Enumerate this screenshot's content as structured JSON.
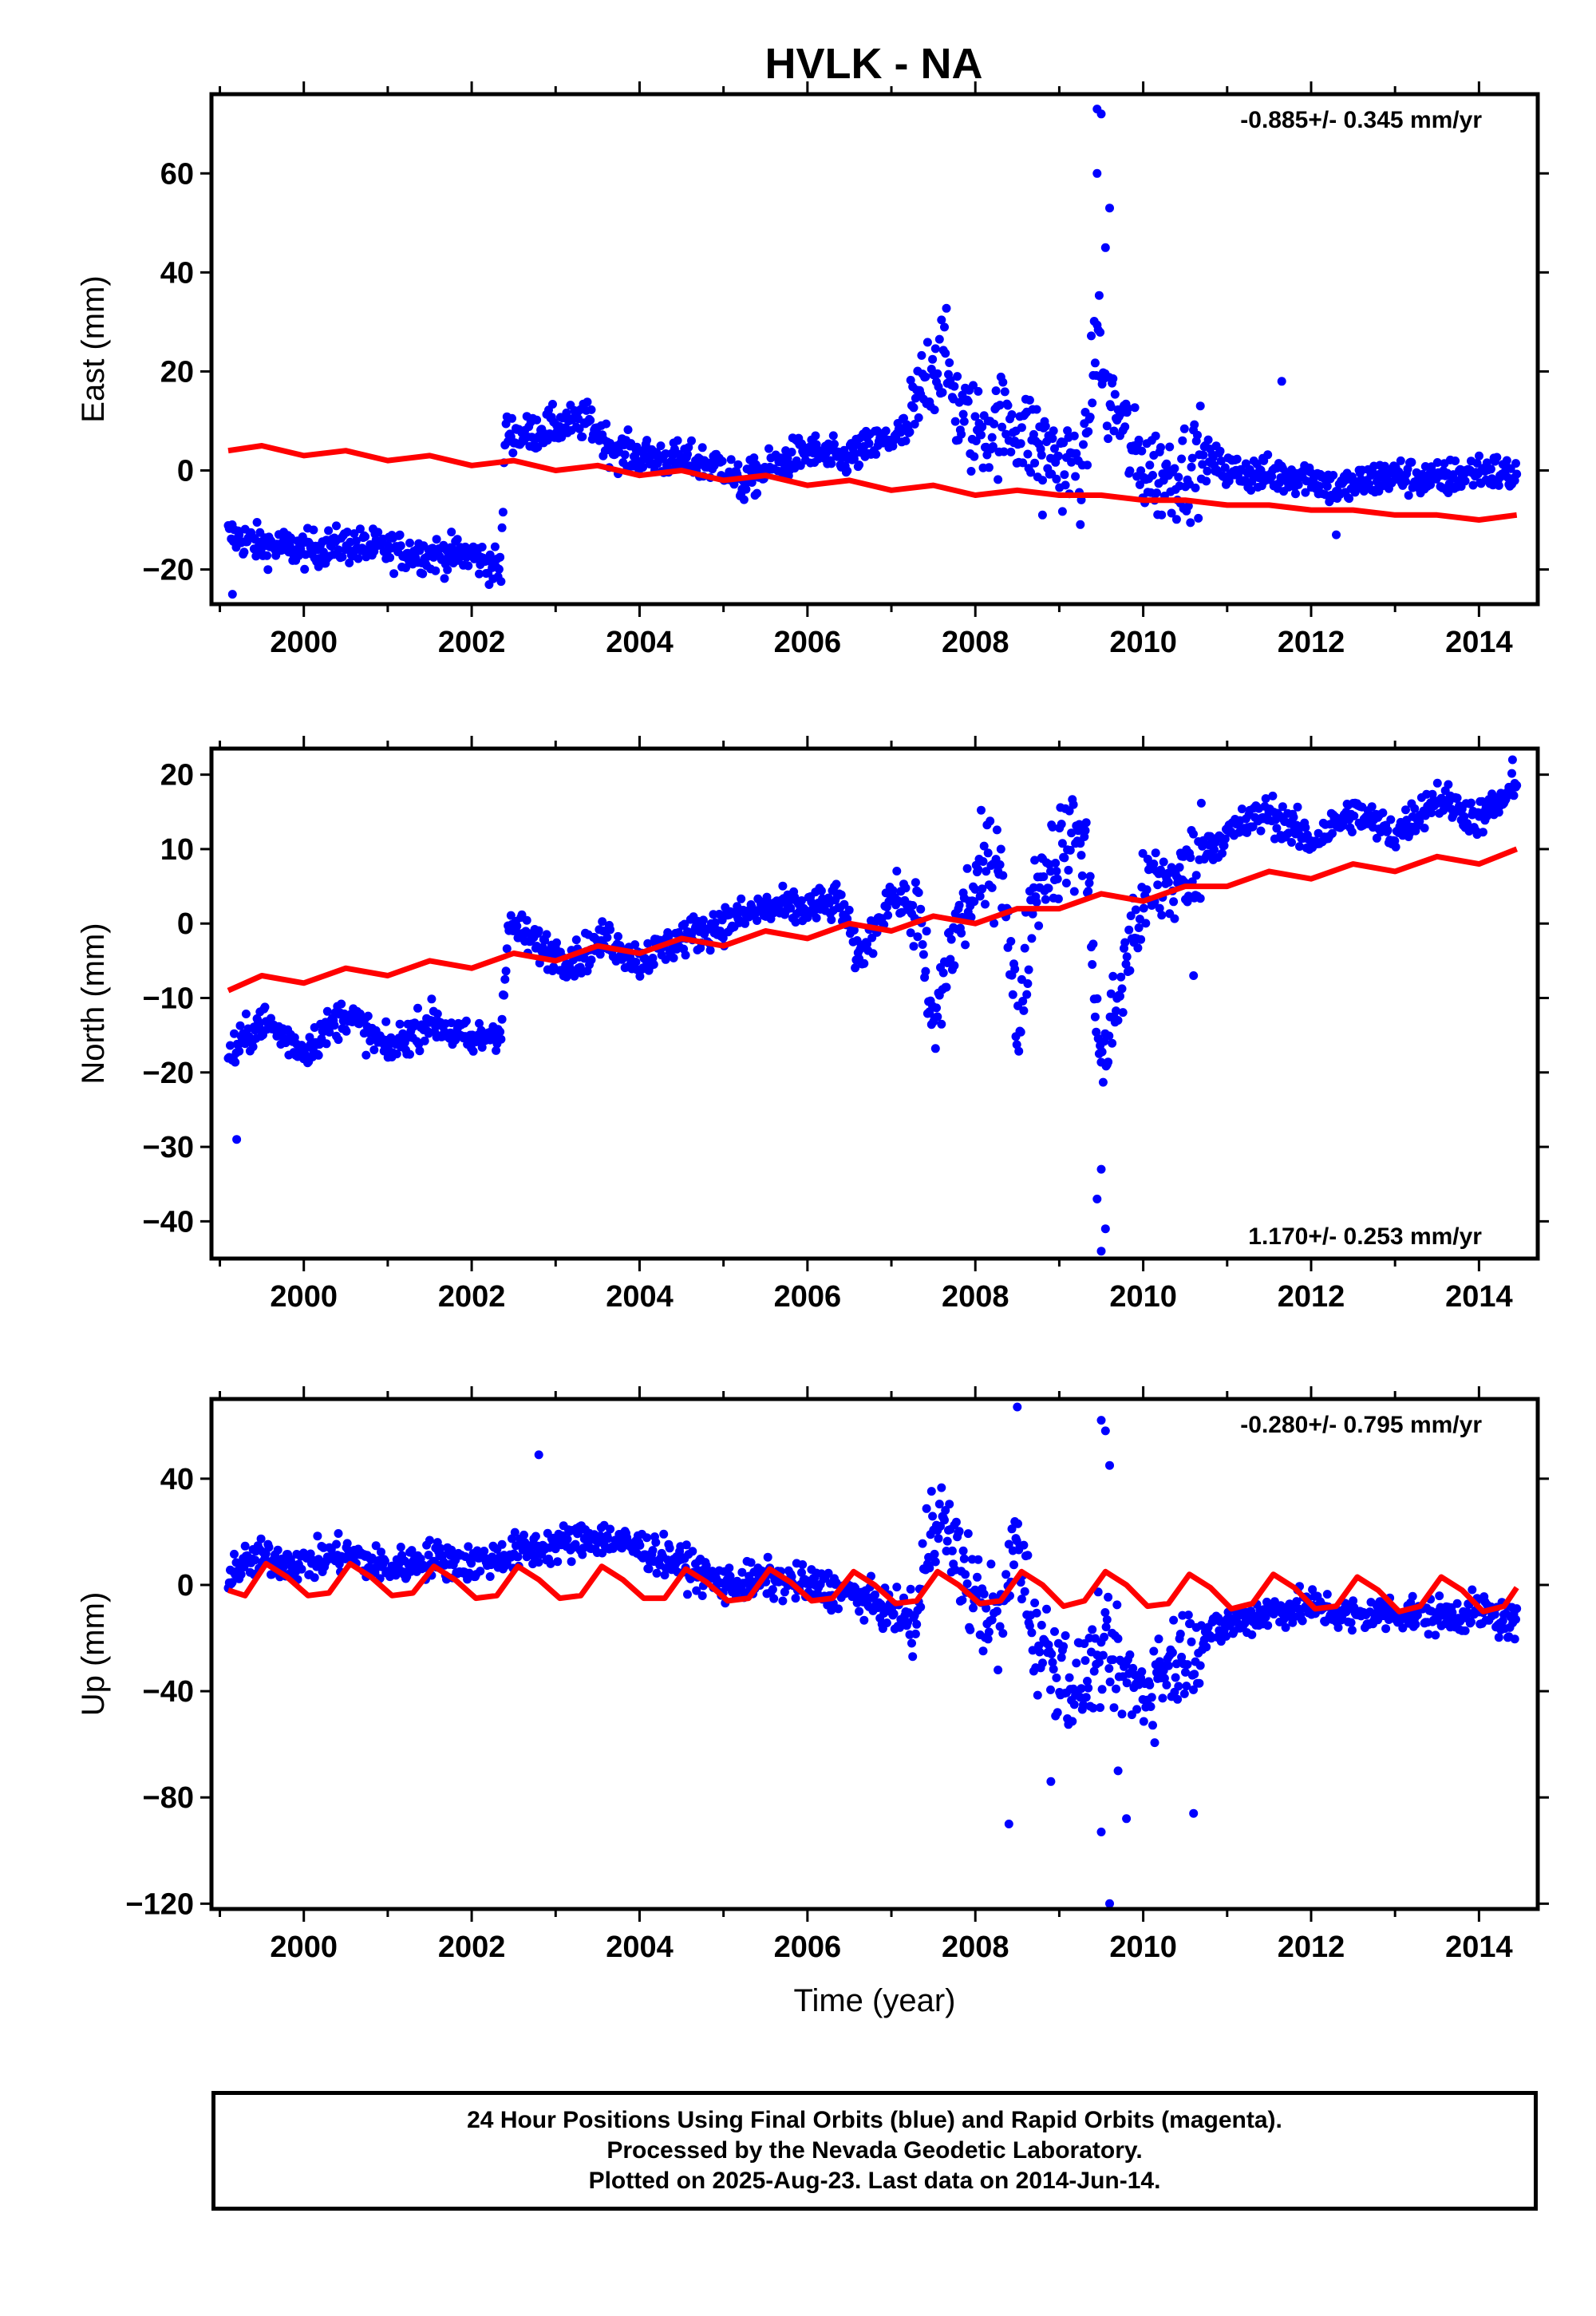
{
  "title": "HVLK - NA",
  "footer": {
    "line1": "24 Hour Positions Using Final Orbits (blue) and Rapid Orbits (magenta).",
    "line2": "Processed by the Nevada Geodetic Laboratory.",
    "line3": "Plotted on 2025-Aug-23. Last data on 2014-Jun-14."
  },
  "colors": {
    "data": "#0000ff",
    "model": "#ff0000",
    "axis": "#000000"
  },
  "chart_data": [
    {
      "type": "scatter",
      "ylabel": "East (mm)",
      "xlabel": "",
      "xlim": [
        1998.9,
        2014.7
      ],
      "ylim": [
        -27,
        76
      ],
      "yticks": [
        -20,
        0,
        20,
        40,
        60
      ],
      "xticks": [
        2000,
        2002,
        2004,
        2006,
        2008,
        2010,
        2012,
        2014
      ],
      "rate": "-0.885+/- 0.345 mm/yr",
      "rate_position": "top-right",
      "series": [
        {
          "role": "observed",
          "x": [
            1999.1,
            1999.5,
            2000.0,
            2000.5,
            2001.0,
            2001.5,
            2002.0,
            2002.35,
            2002.4,
            2002.6,
            2003.0,
            2003.4,
            2003.7,
            2004.0,
            2004.5,
            2005.0,
            2005.2,
            2005.6,
            2006.0,
            2006.4,
            2006.8,
            2007.2,
            2007.45,
            2007.6,
            2007.8,
            2008.0,
            2008.4,
            2008.7,
            2009.0,
            2009.3,
            2009.45,
            2009.55,
            2009.75,
            2009.9,
            2010.2,
            2010.5,
            2010.7,
            2011.0,
            2011.5,
            2012.0,
            2012.3,
            2012.7,
            2013.0,
            2013.5,
            2014.0,
            2014.45
          ],
          "y": [
            -13,
            -15,
            -16,
            -15,
            -16,
            -17,
            -17,
            -20,
            8,
            7,
            9,
            10,
            4,
            3,
            2,
            1,
            -3,
            1,
            4,
            2,
            5,
            8,
            20,
            24,
            12,
            8,
            10,
            6,
            2,
            0,
            30,
            15,
            10,
            2,
            -1,
            0,
            3,
            0,
            -1,
            -1,
            -4,
            -2,
            -1,
            -2,
            0,
            -1
          ]
        },
        {
          "role": "model",
          "x": [
            1999.1,
            1999.5,
            2000.0,
            2000.5,
            2001.0,
            2001.5,
            2002.0,
            2002.5,
            2003.0,
            2003.5,
            2004.0,
            2004.5,
            2005.0,
            2005.5,
            2006.0,
            2006.5,
            2007.0,
            2007.5,
            2008.0,
            2008.5,
            2009.0,
            2009.5,
            2010.0,
            2010.5,
            2011.0,
            2011.5,
            2012.0,
            2012.5,
            2013.0,
            2013.5,
            2014.0,
            2014.45
          ],
          "y": [
            4,
            5,
            3,
            4,
            2,
            3,
            1,
            2,
            0,
            1,
            -1,
            0,
            -2,
            -1,
            -3,
            -2,
            -4,
            -3,
            -5,
            -4,
            -5,
            -5,
            -6,
            -6,
            -7,
            -7,
            -8,
            -8,
            -9,
            -9,
            -10,
            -9
          ]
        }
      ],
      "outliers": [
        [
          2009.45,
          73
        ],
        [
          2009.5,
          72
        ],
        [
          2009.45,
          60
        ],
        [
          2009.6,
          53
        ],
        [
          2009.55,
          45
        ],
        [
          1999.15,
          -25
        ],
        [
          2008.8,
          -9
        ],
        [
          2011.65,
          18
        ],
        [
          2012.3,
          -13
        ]
      ]
    },
    {
      "type": "scatter",
      "ylabel": "North (mm)",
      "xlabel": "",
      "xlim": [
        1998.9,
        2014.7
      ],
      "ylim": [
        -45,
        23.5
      ],
      "yticks": [
        -40,
        -30,
        -20,
        -10,
        0,
        10,
        20
      ],
      "xticks": [
        2000,
        2002,
        2004,
        2006,
        2008,
        2010,
        2012,
        2014
      ],
      "rate": "1.170+/- 0.253 mm/yr",
      "rate_position": "bottom-right",
      "series": [
        {
          "role": "observed",
          "x": [
            1999.1,
            1999.5,
            2000.0,
            2000.5,
            2001.0,
            2001.5,
            2002.0,
            2002.35,
            2002.45,
            2002.8,
            2003.2,
            2003.6,
            2004.0,
            2004.5,
            2005.0,
            2005.5,
            2006.0,
            2006.4,
            2006.6,
            2007.0,
            2007.3,
            2007.5,
            2007.7,
            2008.0,
            2008.3,
            2008.5,
            2008.7,
            2009.0,
            2009.3,
            2009.5,
            2009.7,
            2009.9,
            2010.1,
            2010.5,
            2010.7,
            2011.0,
            2011.5,
            2012.0,
            2012.5,
            2013.0,
            2013.5,
            2014.0,
            2014.45
          ],
          "y": [
            -18,
            -13,
            -17,
            -12,
            -17,
            -13,
            -16,
            -14,
            0,
            -3,
            -5,
            -2,
            -5,
            -2,
            0,
            2,
            2,
            3,
            -5,
            4,
            2,
            -15,
            -3,
            5,
            10,
            -15,
            5,
            10,
            12,
            -20,
            -10,
            0,
            5,
            6,
            10,
            12,
            15,
            11,
            15,
            12,
            17,
            14,
            18
          ]
        },
        {
          "role": "model",
          "x": [
            1999.1,
            1999.5,
            2000.0,
            2000.5,
            2001.0,
            2001.5,
            2002.0,
            2002.5,
            2003.0,
            2003.5,
            2004.0,
            2004.5,
            2005.0,
            2005.5,
            2006.0,
            2006.5,
            2007.0,
            2007.5,
            2008.0,
            2008.5,
            2009.0,
            2009.5,
            2010.0,
            2010.5,
            2011.0,
            2011.5,
            2012.0,
            2012.5,
            2013.0,
            2013.5,
            2014.0,
            2014.45
          ],
          "y": [
            -9,
            -7,
            -8,
            -6,
            -7,
            -5,
            -6,
            -4,
            -5,
            -3,
            -4,
            -2,
            -3,
            -1,
            -2,
            0,
            -1,
            1,
            0,
            2,
            2,
            4,
            3,
            5,
            5,
            7,
            6,
            8,
            7,
            9,
            8,
            10
          ]
        }
      ],
      "outliers": [
        [
          1999.2,
          -29
        ],
        [
          2009.5,
          -44
        ],
        [
          2009.55,
          -41
        ],
        [
          2009.45,
          -37
        ],
        [
          2009.5,
          -33
        ],
        [
          2010.6,
          -7
        ],
        [
          2014.4,
          22
        ]
      ]
    },
    {
      "type": "scatter",
      "ylabel": "Up (mm)",
      "xlabel": "Time (year)",
      "xlim": [
        1998.9,
        2014.7
      ],
      "ylim": [
        -122,
        70
      ],
      "yticks": [
        -120,
        -80,
        -40,
        0,
        40
      ],
      "xticks": [
        2000,
        2002,
        2004,
        2006,
        2008,
        2010,
        2012,
        2014
      ],
      "rate": "-0.280+/- 0.795 mm/yr",
      "rate_position": "top-right",
      "series": [
        {
          "role": "observed",
          "x": [
            1999.1,
            1999.5,
            2000.0,
            2000.5,
            2001.0,
            2001.5,
            2002.0,
            2002.5,
            2003.0,
            2003.5,
            2004.0,
            2004.5,
            2005.0,
            2005.5,
            2006.0,
            2006.5,
            2007.0,
            2007.3,
            2007.5,
            2007.8,
            2008.0,
            2008.3,
            2008.5,
            2008.7,
            2009.0,
            2009.2,
            2009.5,
            2009.8,
            2010.0,
            2010.3,
            2010.7,
            2011.0,
            2011.5,
            2012.0,
            2012.5,
            2013.0,
            2013.5,
            2014.0,
            2014.45
          ],
          "y": [
            5,
            10,
            8,
            12,
            6,
            10,
            8,
            12,
            15,
            18,
            14,
            8,
            0,
            2,
            0,
            -3,
            -10,
            -15,
            30,
            10,
            -5,
            -15,
            20,
            -20,
            -30,
            -40,
            -25,
            -35,
            -40,
            -30,
            -20,
            -15,
            -10,
            -8,
            -12,
            -10,
            -12,
            -10,
            -15
          ]
        },
        {
          "role": "model",
          "x": [
            1999.1,
            1999.3,
            1999.55,
            1999.8,
            2000.05,
            2000.3,
            2000.55,
            2000.8,
            2001.05,
            2001.3,
            2001.55,
            2001.8,
            2002.05,
            2002.3,
            2002.55,
            2002.8,
            2003.05,
            2003.3,
            2003.55,
            2003.8,
            2004.05,
            2004.3,
            2004.55,
            2004.8,
            2005.05,
            2005.3,
            2005.55,
            2005.8,
            2006.05,
            2006.3,
            2006.55,
            2006.8,
            2007.05,
            2007.3,
            2007.55,
            2007.8,
            2008.05,
            2008.3,
            2008.55,
            2008.8,
            2009.05,
            2009.3,
            2009.55,
            2009.8,
            2010.05,
            2010.3,
            2010.55,
            2010.8,
            2011.05,
            2011.3,
            2011.55,
            2011.8,
            2012.05,
            2012.3,
            2012.55,
            2012.8,
            2013.05,
            2013.3,
            2013.55,
            2013.8,
            2014.05,
            2014.3,
            2014.45
          ],
          "y": [
            -2,
            -4,
            8,
            3,
            -4,
            -3,
            8,
            3,
            -4,
            -3,
            7,
            2,
            -5,
            -4,
            7,
            2,
            -5,
            -4,
            7,
            2,
            -5,
            -5,
            6,
            1,
            -6,
            -5,
            6,
            1,
            -6,
            -5,
            5,
            0,
            -7,
            -6,
            5,
            0,
            -7,
            -6,
            5,
            0,
            -8,
            -6,
            5,
            0,
            -8,
            -7,
            4,
            -1,
            -9,
            -7,
            4,
            -1,
            -9,
            -8,
            3,
            -2,
            -10,
            -8,
            3,
            -2,
            -10,
            -8,
            -1
          ]
        }
      ],
      "outliers": [
        [
          2002.8,
          49
        ],
        [
          2008.5,
          67
        ],
        [
          2009.5,
          62
        ],
        [
          2009.55,
          58
        ],
        [
          2009.6,
          45
        ],
        [
          2008.4,
          -90
        ],
        [
          2009.6,
          -120
        ],
        [
          2009.5,
          -93
        ],
        [
          2010.6,
          -86
        ],
        [
          2008.9,
          -74
        ],
        [
          2009.8,
          -88
        ],
        [
          2009.7,
          -70
        ]
      ]
    }
  ]
}
